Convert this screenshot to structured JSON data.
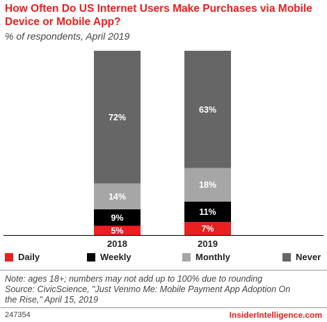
{
  "header": {
    "title": "How Often Do US Internet Users Make Purchases via Mobile Device or Mobile App?",
    "subtitle": "% of respondents, April 2019"
  },
  "legend": {
    "items": [
      "Daily",
      "Weekly",
      "Monthly",
      "Never"
    ]
  },
  "footnote": {
    "line1": "Note: ages 18+; numbers may not add up to 100% due to rounding",
    "line2": "Source: CivicScience, \"Just Venmo Me: Mobile Payment App Adoption On",
    "line3": "the Rise,\" April 15, 2019"
  },
  "footer": {
    "id": "247354",
    "brand": "InsiderIntelligence.com"
  },
  "colors": {
    "Daily": "#e8201f",
    "Weekly": "#000000",
    "Monthly": "#a6a6a6",
    "Never": "#666666",
    "title": "#e8201f"
  },
  "chart_data": {
    "type": "bar",
    "stacked": true,
    "categories": [
      "2018",
      "2019"
    ],
    "series": [
      {
        "name": "Daily",
        "values": [
          5,
          7
        ],
        "labels": [
          "5%",
          "7%"
        ]
      },
      {
        "name": "Weekly",
        "values": [
          9,
          11
        ],
        "labels": [
          "9%",
          "11%"
        ]
      },
      {
        "name": "Monthly",
        "values": [
          14,
          18
        ],
        "labels": [
          "14%",
          "18%"
        ]
      },
      {
        "name": "Never",
        "values": [
          72,
          63
        ],
        "labels": [
          "72%",
          "63%"
        ]
      }
    ],
    "title": "How Often Do US Internet Users Make Purchases via Mobile Device or Mobile App?",
    "subtitle": "% of respondents, April 2019",
    "legend_position": "bottom",
    "grid": false
  }
}
